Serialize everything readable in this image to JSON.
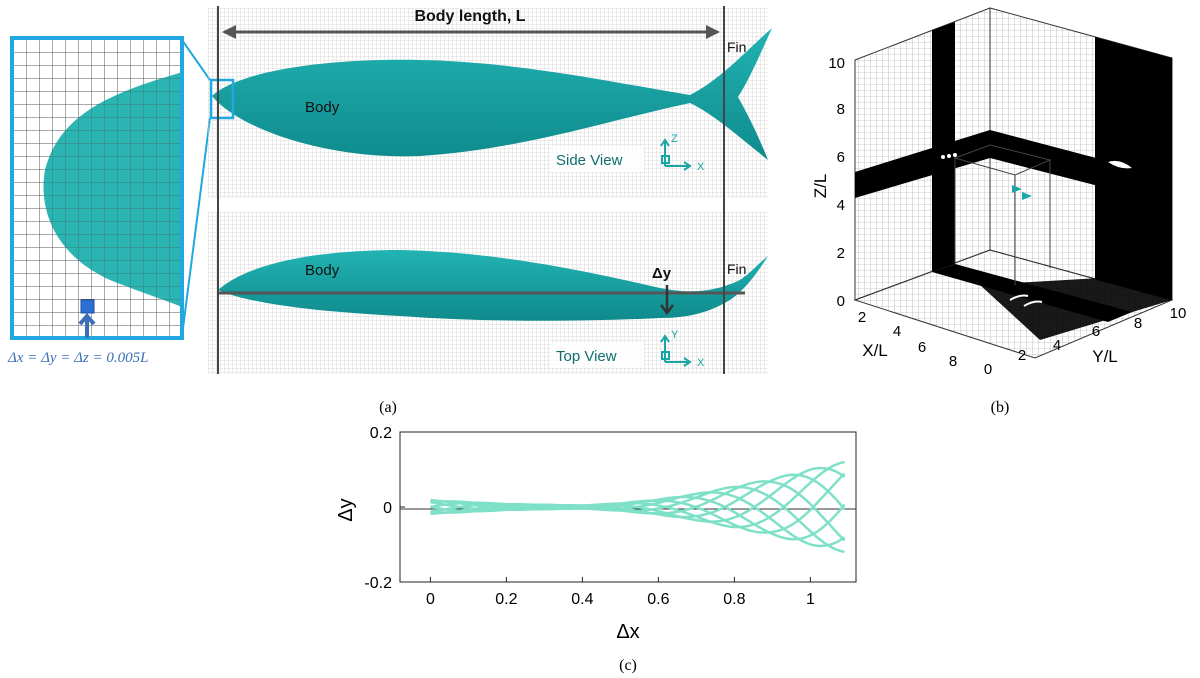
{
  "panel_a": {
    "label": "(a)",
    "body_length_label": "Body length, L",
    "side_view": {
      "body_label": "Body",
      "fin_label": "Fin",
      "view_label": "Side View",
      "axis_up": "Z",
      "axis_right": "X"
    },
    "top_view": {
      "body_label": "Body",
      "fin_label": "Fin",
      "dy_label": "Δy",
      "view_label": "Top View",
      "axis_up": "Y",
      "axis_right": "X"
    },
    "zoom_caption": "Δx = Δy = Δz = 0.005L",
    "colors": {
      "fish": "#1aa6a6",
      "fish_dark": "#0e7e80",
      "zoom_frame": "#22a8e0",
      "caption": "#3b6fb8"
    }
  },
  "panel_b": {
    "label": "(b)",
    "z_axis_label": "Z/L",
    "x_axis_label": "X/L",
    "y_axis_label": "Y/L",
    "z_ticks": [
      "0",
      "2",
      "4",
      "6",
      "8",
      "10"
    ],
    "x_ticks": [
      "2",
      "4",
      "6",
      "8"
    ],
    "y_ticks": [
      "0",
      "2",
      "4",
      "6",
      "8",
      "10"
    ]
  },
  "panel_c": {
    "label": "(c)",
    "chart_data": {
      "type": "line",
      "title": "",
      "xlabel": "Δx",
      "ylabel": "Δy",
      "xlim": [
        -0.08,
        1.12
      ],
      "ylim": [
        -0.2,
        0.2
      ],
      "x_ticks": [
        "0",
        "0.2",
        "0.4",
        "0.6",
        "0.8",
        "1"
      ],
      "y_ticks": [
        "0.2",
        "0",
        "-0.2"
      ],
      "envelope": {
        "x": [
          0,
          0.2,
          0.4,
          0.5,
          0.6,
          0.7,
          0.8,
          0.9,
          1.0,
          1.09
        ],
        "amplitude": [
          0.018,
          0.008,
          0.004,
          0.01,
          0.02,
          0.035,
          0.055,
          0.075,
          0.1,
          0.12
        ]
      },
      "phases_count": 8,
      "color": "#7fe0c8"
    }
  }
}
